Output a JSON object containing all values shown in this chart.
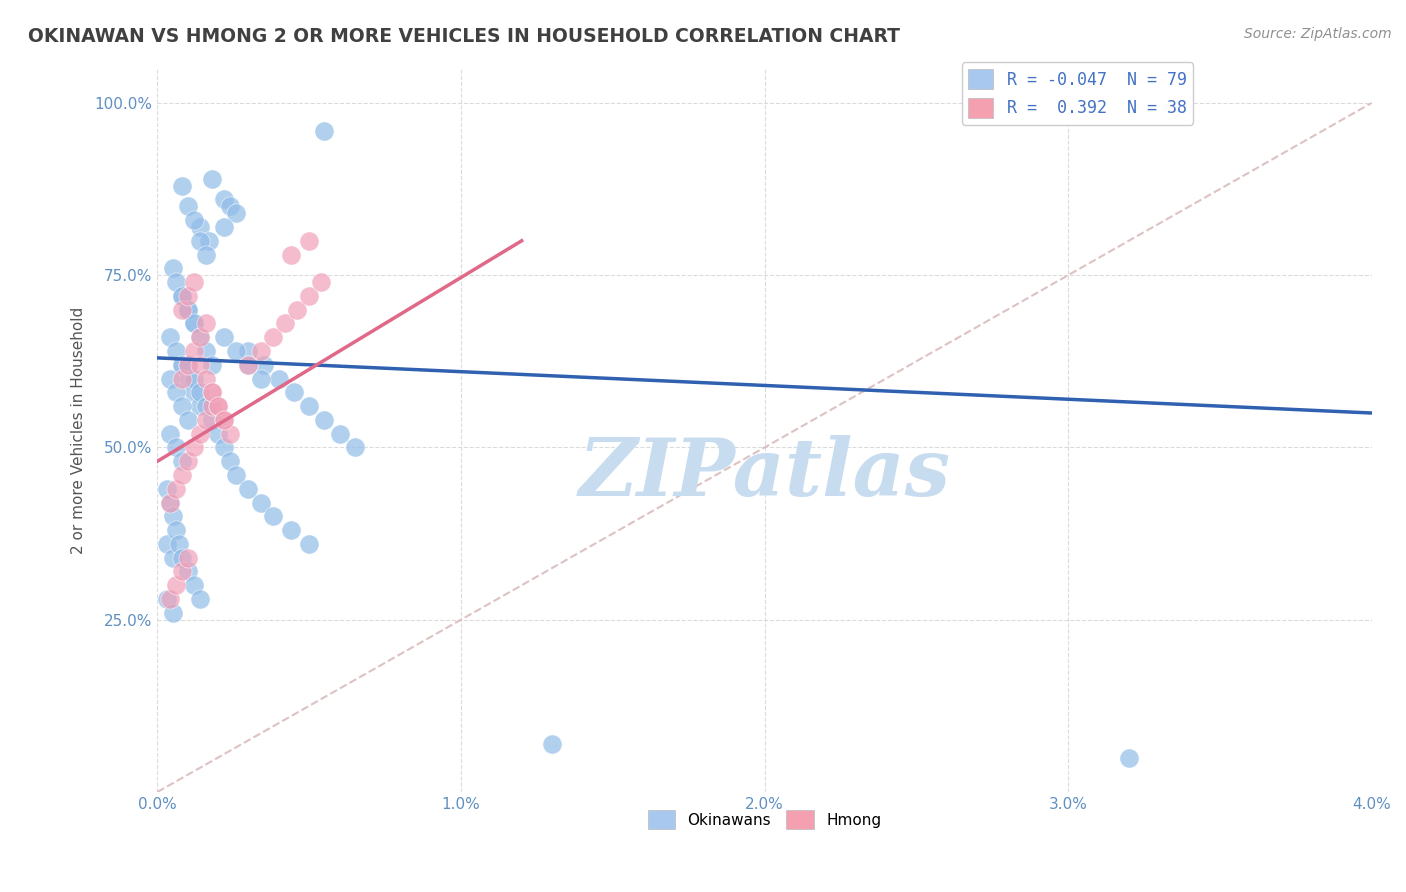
{
  "title": "OKINAWAN VS HMONG 2 OR MORE VEHICLES IN HOUSEHOLD CORRELATION CHART",
  "source": "Source: ZipAtlas.com",
  "ylabel": "2 or more Vehicles in Household",
  "xlabel_ticks": [
    "0.0%",
    "1.0%",
    "2.0%",
    "3.0%",
    "4.0%"
  ],
  "ylabel_ticks": [
    "25.0%",
    "50.0%",
    "75.0%",
    "100.0%"
  ],
  "xlim": [
    0.0,
    4.0
  ],
  "ylim": [
    0.0,
    105.0
  ],
  "okinawan_color": "#90bce8",
  "hmong_color": "#f0a0b8",
  "okinawan_line_color": "#3060b0",
  "hmong_line_color": "#e06888",
  "diagonal_color": "#d8b8b8",
  "grid_color": "#d8d8d8",
  "title_color": "#404040",
  "source_color": "#909090",
  "axis_label_color": "#6090c0",
  "watermark_color": "#c8dcf0",
  "legend1_color_ok": "#a8c8f0",
  "legend1_color_hm": "#f4a0b0",
  "legend1_text_ok": "R = -0.047  N = 79",
  "legend1_text_hm": "R =  0.392  N = 38",
  "okinawan_x": [
    0.55,
    0.14,
    0.17,
    0.22,
    0.24,
    0.26,
    0.22,
    0.18,
    0.08,
    0.1,
    0.12,
    0.14,
    0.16,
    0.08,
    0.1,
    0.12,
    0.05,
    0.06,
    0.08,
    0.1,
    0.12,
    0.14,
    0.16,
    0.18,
    0.08,
    0.1,
    0.12,
    0.14,
    0.04,
    0.06,
    0.08,
    0.04,
    0.06,
    0.08,
    0.1,
    0.04,
    0.06,
    0.08,
    0.1,
    0.12,
    0.14,
    0.16,
    0.18,
    0.2,
    0.22,
    0.24,
    0.26,
    0.3,
    0.34,
    0.38,
    0.44,
    0.5,
    0.3,
    0.35,
    0.4,
    0.45,
    0.5,
    0.55,
    0.6,
    0.65,
    0.22,
    0.26,
    0.3,
    0.34,
    0.03,
    0.05,
    0.03,
    0.05,
    1.3,
    3.2,
    0.03,
    0.04,
    0.05,
    0.06,
    0.07,
    0.08,
    0.1,
    0.12,
    0.14
  ],
  "okinawan_y": [
    96,
    82,
    80,
    86,
    85,
    84,
    82,
    89,
    88,
    85,
    83,
    80,
    78,
    72,
    70,
    68,
    76,
    74,
    72,
    70,
    68,
    66,
    64,
    62,
    62,
    60,
    58,
    56,
    66,
    64,
    62,
    60,
    58,
    56,
    54,
    52,
    50,
    48,
    62,
    60,
    58,
    56,
    54,
    52,
    50,
    48,
    46,
    44,
    42,
    40,
    38,
    36,
    64,
    62,
    60,
    58,
    56,
    54,
    52,
    50,
    66,
    64,
    62,
    60,
    36,
    34,
    28,
    26,
    7,
    5,
    44,
    42,
    40,
    38,
    36,
    34,
    32,
    30,
    28
  ],
  "hmong_x": [
    0.04,
    0.06,
    0.08,
    0.1,
    0.04,
    0.06,
    0.08,
    0.1,
    0.12,
    0.14,
    0.16,
    0.18,
    0.08,
    0.1,
    0.12,
    0.14,
    0.16,
    0.18,
    0.2,
    0.22,
    0.24,
    0.08,
    0.1,
    0.12,
    0.14,
    0.16,
    0.18,
    0.2,
    0.22,
    0.3,
    0.34,
    0.38,
    0.42,
    0.46,
    0.5,
    0.54,
    0.44,
    0.5
  ],
  "hmong_y": [
    28,
    30,
    32,
    34,
    42,
    44,
    46,
    48,
    50,
    52,
    54,
    56,
    60,
    62,
    64,
    66,
    68,
    58,
    56,
    54,
    52,
    70,
    72,
    74,
    62,
    60,
    58,
    56,
    54,
    62,
    64,
    66,
    68,
    70,
    72,
    74,
    78,
    80
  ],
  "okin_line_x0": 0.0,
  "okin_line_y0": 63.0,
  "okin_line_x1": 4.0,
  "okin_line_y1": 55.0,
  "hmong_line_x0": 0.0,
  "hmong_line_y0": 48.0,
  "hmong_line_x1": 1.2,
  "hmong_line_y1": 80.0,
  "diag_x0": 0.0,
  "diag_y0": 0.0,
  "diag_x1": 4.0,
  "diag_y1": 100.0
}
